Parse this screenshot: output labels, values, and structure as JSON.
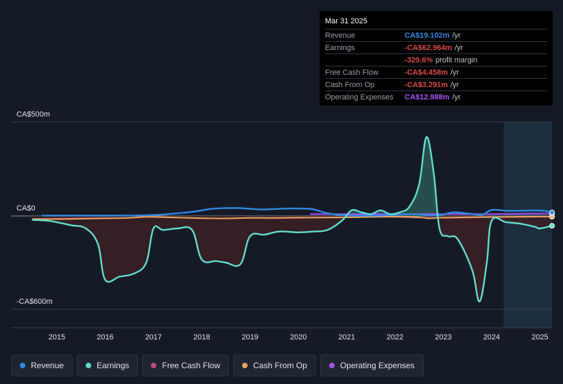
{
  "tooltip": {
    "date": "Mar 31 2025",
    "rows": [
      {
        "label": "Revenue",
        "value": "CA$19.102m",
        "unit": "/yr",
        "color": "#2e8ae6"
      },
      {
        "label": "Earnings",
        "value": "-CA$62.964m",
        "unit": "/yr",
        "color": "#e04848"
      },
      {
        "label": "",
        "value": "-329.6%",
        "unit": "profit margin",
        "color": "#e04848"
      },
      {
        "label": "Free Cash Flow",
        "value": "-CA$4.458m",
        "unit": "/yr",
        "color": "#e04848"
      },
      {
        "label": "Cash From Op",
        "value": "-CA$3.291m",
        "unit": "/yr",
        "color": "#e04848"
      },
      {
        "label": "Operating Expenses",
        "value": "CA$12.988m",
        "unit": "/yr",
        "color": "#a855f7"
      }
    ]
  },
  "legend": [
    {
      "label": "Revenue",
      "color": "#2e8ae6"
    },
    {
      "label": "Earnings",
      "color": "#5ee0cf"
    },
    {
      "label": "Free Cash Flow",
      "color": "#c7477a"
    },
    {
      "label": "Cash From Op",
      "color": "#e8a55a"
    },
    {
      "label": "Operating Expenses",
      "color": "#a855f7"
    }
  ],
  "chart_data": {
    "type": "line",
    "title": "",
    "xlabel": "",
    "ylabel": "",
    "ylim": [
      -600,
      500
    ],
    "y_tick_labels": [
      {
        "value": 500,
        "label": "CA$500m"
      },
      {
        "value": 0,
        "label": "CA$0"
      },
      {
        "value": -600,
        "label": "-CA$600m"
      }
    ],
    "x_ticks": [
      2015,
      2016,
      2017,
      2018,
      2019,
      2020,
      2021,
      2022,
      2023,
      2024,
      2025
    ],
    "xlim": [
      2014.05,
      2025.25
    ],
    "highlight_from": 2024.25,
    "series": [
      {
        "name": "Revenue",
        "color": "#2e8ae6",
        "x": [
          2014.7,
          2015.5,
          2016.5,
          2017.0,
          2017.3,
          2017.8,
          2018.2,
          2018.5,
          2018.8,
          2019.2,
          2019.5,
          2019.8,
          2020.0,
          2020.3,
          2020.6,
          2021.0,
          2021.5,
          2022.0,
          2022.3,
          2022.5,
          2022.8,
          2023.0,
          2023.2,
          2023.5,
          2023.8,
          2024.0,
          2024.3,
          2024.6,
          2024.9,
          2025.1,
          2025.25
        ],
        "y": [
          2,
          2,
          2,
          5,
          10,
          22,
          38,
          42,
          42,
          35,
          37,
          40,
          40,
          36,
          15,
          3,
          2,
          6,
          10,
          8,
          3,
          8,
          20,
          14,
          7,
          32,
          28,
          28,
          30,
          27,
          19
        ]
      },
      {
        "name": "Earnings",
        "color": "#5ee0cf",
        "x": [
          2014.5,
          2014.8,
          2015.0,
          2015.3,
          2015.6,
          2015.85,
          2016.0,
          2016.3,
          2016.6,
          2016.85,
          2017.0,
          2017.2,
          2017.5,
          2017.8,
          2018.0,
          2018.3,
          2018.5,
          2018.8,
          2019.0,
          2019.3,
          2019.6,
          2020.0,
          2020.3,
          2020.6,
          2020.9,
          2021.1,
          2021.3,
          2021.5,
          2021.7,
          2021.9,
          2022.1,
          2022.3,
          2022.5,
          2022.65,
          2022.8,
          2022.92,
          2023.1,
          2023.3,
          2023.6,
          2023.75,
          2023.9,
          2024.0,
          2024.3,
          2024.6,
          2024.9,
          2025.0,
          2025.25
        ],
        "y": [
          -25,
          -30,
          -40,
          -60,
          -80,
          -180,
          -410,
          -390,
          -370,
          -300,
          -80,
          -90,
          -80,
          -90,
          -280,
          -290,
          -300,
          -310,
          -130,
          -120,
          -100,
          -105,
          -100,
          -90,
          -30,
          30,
          20,
          10,
          30,
          10,
          20,
          50,
          170,
          420,
          230,
          -80,
          -130,
          -150,
          -350,
          -550,
          -300,
          -30,
          -40,
          -50,
          -70,
          -80,
          -63
        ]
      },
      {
        "name": "Free Cash Flow",
        "color": "#c7477a",
        "x": [
          2014.5,
          2015.5,
          2016.5,
          2017.0,
          2017.5,
          2018.0,
          2018.5,
          2019.0,
          2019.5,
          2020.0,
          2020.5,
          2021.0,
          2021.5,
          2022.0,
          2022.5,
          2023.0,
          2023.5,
          2024.0,
          2024.5,
          2025.0,
          2025.25
        ],
        "y": [
          -20,
          -15,
          -12,
          -5,
          -10,
          -15,
          -15,
          -12,
          -14,
          -12,
          -10,
          -8,
          -5,
          -6,
          -10,
          -12,
          -10,
          -8,
          -6,
          -5,
          -4.5
        ]
      },
      {
        "name": "Cash From Op",
        "color": "#e8a55a",
        "x": [
          2014.5,
          2015.0,
          2015.5,
          2016.0,
          2016.5,
          2016.8,
          2017.2,
          2017.5,
          2017.8,
          2018.0,
          2018.5,
          2019.0,
          2019.5,
          2020.0,
          2020.5,
          2021.0,
          2021.5,
          2022.0,
          2022.5,
          2022.7,
          2023.0,
          2023.5,
          2024.0,
          2024.5,
          2025.0,
          2025.25
        ],
        "y": [
          -20,
          -20,
          -18,
          -15,
          -12,
          -5,
          -8,
          -10,
          -12,
          -14,
          -16,
          -12,
          -12,
          -10,
          -10,
          -9,
          -6,
          -4,
          -8,
          -15,
          -10,
          -8,
          -6,
          -5,
          -4,
          -3.3
        ]
      },
      {
        "name": "Operating Expenses",
        "color": "#a855f7",
        "x": [
          2020.25,
          2020.6,
          2021.0,
          2021.5,
          2022.0,
          2022.5,
          2023.0,
          2023.5,
          2024.0,
          2024.5,
          2025.0,
          2025.25
        ],
        "y": [
          10,
          10,
          10,
          10,
          10,
          10,
          10,
          10,
          10,
          11,
          12,
          13
        ]
      }
    ]
  }
}
